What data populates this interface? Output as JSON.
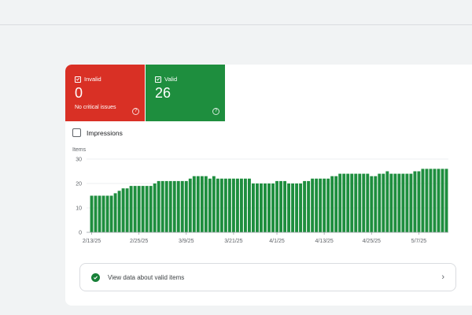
{
  "tiles": {
    "invalid": {
      "label": "Invalid",
      "count": "0",
      "sub": "No critical issues",
      "help": "?"
    },
    "valid": {
      "label": "Valid",
      "count": "26",
      "help": "?"
    }
  },
  "impressions": {
    "label": "Impressions",
    "checked": false
  },
  "chart_data": {
    "type": "bar",
    "ylabel": "Items",
    "ylim": [
      0,
      30
    ],
    "yticks": [
      0,
      10,
      20,
      30
    ],
    "xtick_labels": [
      "2/13/25",
      "2/25/25",
      "3/9/25",
      "3/21/25",
      "4/1/25",
      "4/13/25",
      "4/25/25",
      "5/7/25"
    ],
    "xtick_index": [
      0,
      12,
      24,
      36,
      47,
      59,
      71,
      83
    ],
    "values": [
      15,
      15,
      15,
      15,
      15,
      15,
      16,
      17,
      18,
      18,
      19,
      19,
      19,
      19,
      19,
      19,
      20,
      21,
      21,
      21,
      21,
      21,
      21,
      21,
      21,
      22,
      23,
      23,
      23,
      23,
      22,
      23,
      22,
      22,
      22,
      22,
      22,
      22,
      22,
      22,
      22,
      20,
      20,
      20,
      20,
      20,
      20,
      21,
      21,
      21,
      20,
      20,
      20,
      20,
      21,
      21,
      22,
      22,
      22,
      22,
      22,
      23,
      23,
      24,
      24,
      24,
      24,
      24,
      24,
      24,
      24,
      23,
      23,
      24,
      24,
      25,
      24,
      24,
      24,
      24,
      24,
      24,
      25,
      25,
      26,
      26,
      26,
      26,
      26,
      26,
      26
    ],
    "color": "#1e8e3e"
  },
  "view_link": {
    "label": "View data about valid items",
    "chevron": "›"
  },
  "colors": {
    "invalid": "#d93025",
    "valid": "#1e8e3e",
    "bar": "#1e8e3e"
  }
}
